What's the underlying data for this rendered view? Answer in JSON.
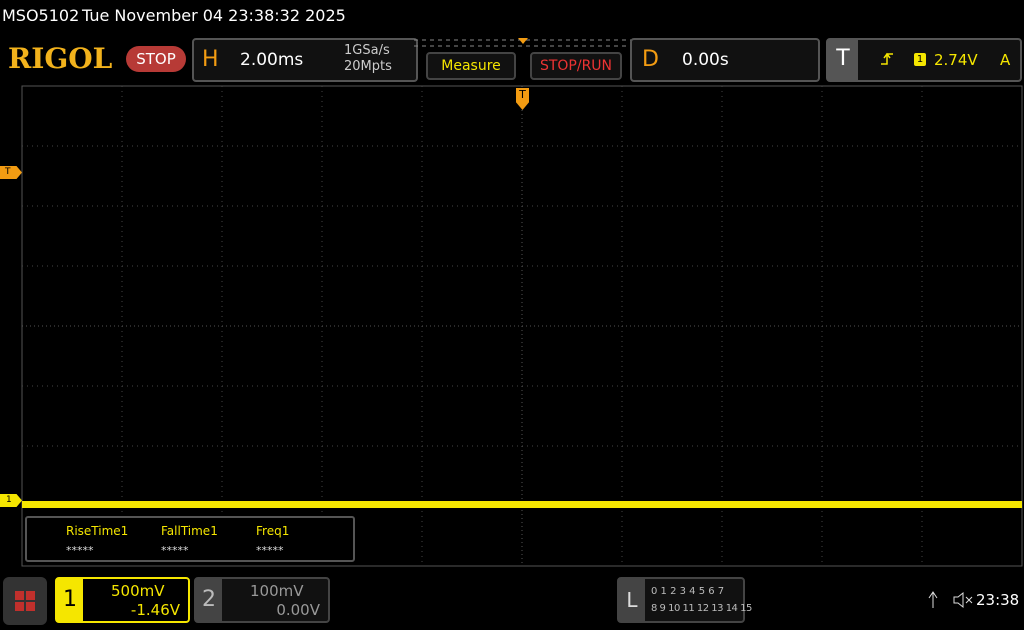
{
  "status_bar": {
    "model": "MSO5102",
    "datetime": "Tue November 04 23:38:32 2025"
  },
  "toolbar": {
    "logo": "RIGOL",
    "run_state": "STOP",
    "horizontal": {
      "label": "H",
      "timebase": "2.00ms",
      "sample_rate": "1GSa/s",
      "memory_depth": "20Mpts"
    },
    "buttons": [
      "Measure",
      "STOP/RUN"
    ],
    "delay": {
      "label": "D",
      "value": "0.00s"
    },
    "trigger": {
      "label": "T",
      "source": "1",
      "level": "2.74V",
      "mode": "A"
    }
  },
  "markers": {
    "trigger_position": "T",
    "trigger_level": "T",
    "channel1": "1"
  },
  "measurements": [
    {
      "name": "RiseTime1",
      "value": "*****"
    },
    {
      "name": "FallTime1",
      "value": "*****"
    },
    {
      "name": "Freq1",
      "value": "*****"
    }
  ],
  "bottom_bar": {
    "channels": [
      {
        "number": "1",
        "scale": "500mV",
        "offset": "-1.46V"
      },
      {
        "number": "2",
        "scale": "100mV",
        "offset": "0.00V"
      }
    ],
    "logic": {
      "label": "L",
      "row1": "0 1 2 3  4 5 6 7",
      "row2": "8 9 10 11 12 13 14 15"
    },
    "time": "23:38"
  }
}
